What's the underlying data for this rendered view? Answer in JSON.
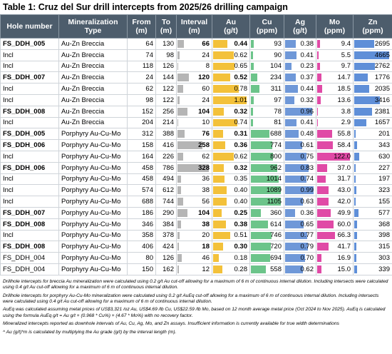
{
  "title": "Table 1: Cruz del Sur drill intercepts from 2025/26 drilling campaign",
  "table": {
    "headers": [
      [
        "Hole number"
      ],
      [
        "Mineralization",
        "Type"
      ],
      [
        "From",
        "(m)"
      ],
      [
        "To",
        "(m)"
      ],
      [
        "Interval",
        "(m)"
      ],
      [
        "Au",
        "(g/t)"
      ],
      [
        "Cu",
        "(ppm)"
      ],
      [
        "Ag",
        "(g/t)"
      ],
      [
        "Mo",
        "(ppm)"
      ],
      [
        "Zn",
        "(ppm)"
      ]
    ],
    "bar_colors": [
      null,
      null,
      null,
      null,
      "#b5b5b5",
      "#f3c13a",
      "#6cc48a",
      "#6f98d8",
      "#e04aa6",
      "#5f8fd8"
    ],
    "rows": [
      {
        "bold": true,
        "cells": [
          "FS_DDH_005",
          "Au-Zn Breccia",
          "64",
          "130",
          "66",
          "0.44",
          "93",
          "0.38",
          "9.4",
          "2695"
        ]
      },
      {
        "bold": false,
        "cells": [
          "Incl",
          "Au-Zn Breccia",
          "74",
          "98",
          "24",
          "0.62",
          "90",
          "0.41",
          "5.5",
          "4665"
        ]
      },
      {
        "bold": false,
        "cells": [
          "Incl",
          "Au-Zn Breccia",
          "118",
          "126",
          "8",
          "0.65",
          "104",
          "0.23",
          "9.7",
          "2762"
        ]
      },
      {
        "bold": true,
        "cells": [
          "FS_DDH_007",
          "Au-Zn Breccia",
          "24",
          "144",
          "120",
          "0.52",
          "234",
          "0.37",
          "14.7",
          "1776"
        ]
      },
      {
        "bold": false,
        "cells": [
          "Incl",
          "Au-Zn Breccia",
          "62",
          "122",
          "60",
          "0.78",
          "311",
          "0.44",
          "18.5",
          "2035"
        ]
      },
      {
        "bold": false,
        "cells": [
          "Incl",
          "Au-Zn Breccia",
          "98",
          "122",
          "24",
          "1.01",
          "97",
          "0.32",
          "13.6",
          "3416"
        ]
      },
      {
        "bold": true,
        "cells": [
          "FS_DDH_008",
          "Au-Zn Breccia",
          "152",
          "256",
          "104",
          "0.32",
          "78",
          "0.96",
          "3.8",
          "2381"
        ]
      },
      {
        "bold": false,
        "cells": [
          "Incl",
          "Au-Zn Breccia",
          "204",
          "214",
          "10",
          "0.74",
          "81",
          "0.41",
          "2.9",
          "1657"
        ]
      },
      {
        "bold": true,
        "cells": [
          "FS_DDH_005",
          "Porphyry Au-Cu-Mo",
          "312",
          "388",
          "76",
          "0.31",
          "688",
          "0.48",
          "55.8",
          "201"
        ]
      },
      {
        "bold": true,
        "cells": [
          "FS_DDH_006",
          "Porphyry Au-Cu-Mo",
          "158",
          "416",
          "258",
          "0.36",
          "774",
          "0.61",
          "58.4",
          "343"
        ]
      },
      {
        "bold": false,
        "cells": [
          "Incl",
          "Porphyry Au-Cu-Mo",
          "164",
          "226",
          "62",
          "0.62",
          "800",
          "0.75",
          "122.0",
          "630"
        ]
      },
      {
        "bold": true,
        "cells": [
          "FS_DDH_006",
          "Porphyry Au-Cu-Mo",
          "458",
          "786",
          "328",
          "0.32",
          "962",
          "0.83",
          "37.0",
          "227"
        ]
      },
      {
        "bold": false,
        "cells": [
          "Incl",
          "Porphyry Au-Cu-Mo",
          "458",
          "494",
          "36",
          "0.35",
          "1014",
          "0.74",
          "31.7",
          "197"
        ]
      },
      {
        "bold": false,
        "cells": [
          "Incl",
          "Porphyry Au-Cu-Mo",
          "574",
          "612",
          "38",
          "0.40",
          "1089",
          "0.99",
          "43.0",
          "323"
        ]
      },
      {
        "bold": false,
        "cells": [
          "Incl",
          "Porphyry Au-Cu-Mo",
          "688",
          "744",
          "56",
          "0.40",
          "1105",
          "0.63",
          "42.0",
          "155"
        ]
      },
      {
        "bold": true,
        "cells": [
          "FS_DDH_007",
          "Porphyry Au-Cu-Mo",
          "186",
          "290",
          "104",
          "0.25",
          "360",
          "0.36",
          "49.9",
          "577"
        ]
      },
      {
        "bold": true,
        "cells": [
          "FS_DDH_008",
          "Porphyry Au-Cu-Mo",
          "346",
          "384",
          "38",
          "0.38",
          "614",
          "0.65",
          "60.0",
          "368"
        ]
      },
      {
        "bold": false,
        "cells": [
          "Incl",
          "Porphyry Au-Cu-Mo",
          "358",
          "378",
          "20",
          "0.51",
          "746",
          "0.77",
          "66.3",
          "398"
        ]
      },
      {
        "bold": true,
        "cells": [
          "FS_DDH_008",
          "Porphyry Au-Cu-Mo",
          "406",
          "424",
          "18",
          "0.30",
          "720",
          "0.79",
          "41.7",
          "315"
        ]
      },
      {
        "bold": false,
        "cells": [
          "FS_DDH_004",
          "Porphyry Au-Cu-Mo",
          "80",
          "126",
          "46",
          "0.18",
          "694",
          "0.70",
          "16.9",
          "303"
        ]
      },
      {
        "bold": false,
        "cells": [
          "FS_DDH_004",
          "Porphyry Au-Cu-Mo",
          "150",
          "162",
          "12",
          "0.28",
          "558",
          "0.62",
          "15.0",
          "339"
        ]
      }
    ]
  },
  "footnotes": [
    "Drillhole intercepts for breccia Au mineralization were calculated using 0.2 g/t Au cut-off allowing for a maximum of 6 m of continuous internal dilution. Including intersects were calculated using 0.4 g/t Au cut-off allowing for a maximum of 6 m of continuous internal dilution.",
    "Drillhole intercepts for porphyry Au-Cu-Mo mineralization were calculated using 0.2 g/t AuEq cut-off allowing for a maximum of 6 m of continuous internal dilution. Including intersects were calculated using 0.4 g/t Au cut-off allowing for a maximum of 6 m of continuous internal dilution.",
    "AuEq was calculated assuming metal prices of US$3,321 /oz Au, US$4.69 /lb Cu, US$22.59 /lb Mo, based on 12 month average metal price (Oct 2024 to Nov 2025). AuEq is calculated using the formula AuEq g/t = Au g/t + (0.968 * Cu%) + (4.67 * Mo%) with no recovery factor.",
    "Mineralized intercepts reported as downhole intervals of Au, Cu, Ag, Mo, and Zn assays. Insufficient information is currently available for true width determinations",
    "^ Au (g/t)*m is calculated by multiplying the Au grade (g/t) by the interval length (m)."
  ]
}
